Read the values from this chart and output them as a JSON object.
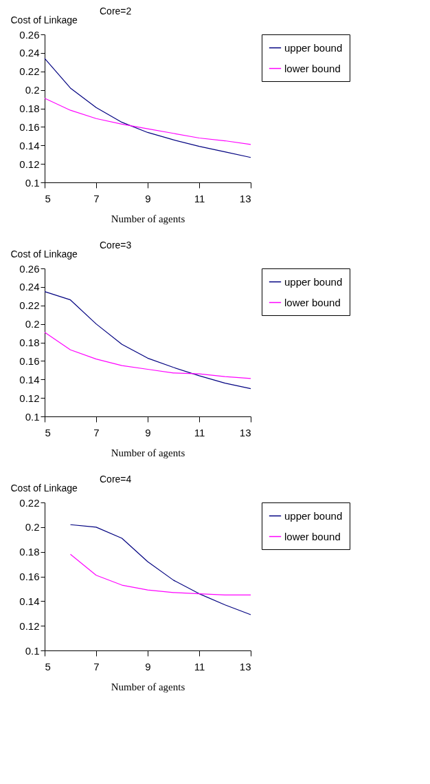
{
  "chart_data": [
    {
      "type": "line",
      "title": "Core=2",
      "ylabel": "Cost of Linkage",
      "xlabel": "Number of agents",
      "x": [
        5,
        6,
        7,
        8,
        9,
        10,
        11,
        12,
        13
      ],
      "xlim": [
        5,
        13
      ],
      "xticks": [
        5,
        7,
        9,
        11,
        13
      ],
      "ylim": [
        0.1,
        0.26
      ],
      "yticks": [
        0.1,
        0.12,
        0.14,
        0.16,
        0.18,
        0.2,
        0.22,
        0.24,
        0.26
      ],
      "grid": false,
      "legend": "right",
      "marker": "none",
      "series": [
        {
          "name": "upper bound",
          "color": "#000080",
          "values": [
            0.234,
            0.202,
            0.181,
            0.165,
            0.154,
            0.146,
            0.139,
            0.133,
            0.127
          ]
        },
        {
          "name": "lower bound",
          "color": "#ff00ff",
          "values": [
            0.191,
            0.178,
            0.169,
            0.163,
            0.158,
            0.153,
            0.148,
            0.145,
            0.141
          ]
        }
      ]
    },
    {
      "type": "line",
      "title": "Core=3",
      "ylabel": "Cost of Linkage",
      "xlabel": "Number of agents",
      "x": [
        5,
        6,
        7,
        8,
        9,
        10,
        11,
        12,
        13
      ],
      "xlim": [
        5,
        13
      ],
      "xticks": [
        5,
        7,
        9,
        11,
        13
      ],
      "ylim": [
        0.1,
        0.26
      ],
      "yticks": [
        0.1,
        0.12,
        0.14,
        0.16,
        0.18,
        0.2,
        0.22,
        0.24,
        0.26
      ],
      "grid": false,
      "legend": "right",
      "marker": "none",
      "series": [
        {
          "name": "upper bound",
          "color": "#000080",
          "values": [
            0.235,
            0.226,
            0.2,
            0.178,
            0.163,
            0.153,
            0.144,
            0.136,
            0.13
          ]
        },
        {
          "name": "lower bound",
          "color": "#ff00ff",
          "values": [
            0.191,
            0.172,
            0.162,
            0.155,
            0.151,
            0.147,
            0.146,
            0.143,
            0.141
          ]
        }
      ]
    },
    {
      "type": "line",
      "title": "Core=4",
      "ylabel": "Cost of Linkage",
      "xlabel": "Number of agents",
      "xlim": [
        5,
        13
      ],
      "xticks": [
        5,
        7,
        9,
        11,
        13
      ],
      "ylim": [
        0.1,
        0.22
      ],
      "yticks": [
        0.1,
        0.12,
        0.14,
        0.16,
        0.18,
        0.2,
        0.22
      ],
      "grid": false,
      "legend": "right",
      "marker": "none",
      "series": [
        {
          "name": "upper bound",
          "color": "#000080",
          "x": [
            6,
            7,
            8,
            9,
            10,
            11,
            12,
            13
          ],
          "values": [
            0.202,
            0.2,
            0.191,
            0.172,
            0.157,
            0.146,
            0.137,
            0.129
          ]
        },
        {
          "name": "lower bound",
          "color": "#ff00ff",
          "x": [
            6,
            7,
            8,
            9,
            10,
            11,
            12,
            13
          ],
          "values": [
            0.178,
            0.161,
            0.153,
            0.149,
            0.147,
            0.146,
            0.145,
            0.145
          ]
        }
      ]
    }
  ]
}
